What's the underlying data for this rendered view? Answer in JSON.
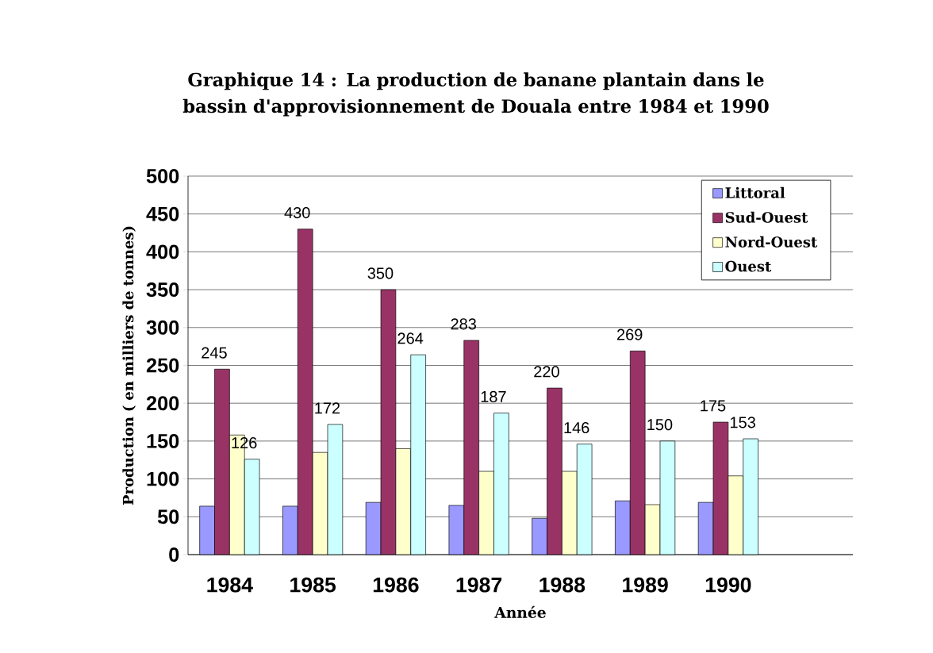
{
  "chart_data": {
    "type": "bar",
    "title": "Graphique 14 : La production de banane plantain  dans le  bassin d'approvisionnement de Douala entre 1984 et 1990",
    "xlabel": "Année",
    "ylabel": "Production ( en milliers de tonnes)",
    "categories": [
      "1984",
      "1985",
      "1986",
      "1987",
      "1988",
      "1989",
      "1990",
      null
    ],
    "ylim": [
      0,
      500
    ],
    "yticks": [
      0,
      50,
      100,
      150,
      200,
      250,
      300,
      350,
      400,
      450,
      500
    ],
    "grid": "y",
    "legend": "top right",
    "series": [
      {
        "name": "Littoral",
        "color": "#9999ff",
        "values": [
          64,
          64,
          69,
          65,
          48,
          71,
          69,
          null
        ]
      },
      {
        "name": "Sud-Ouest",
        "color": "#993366",
        "values": [
          245,
          430,
          350,
          283,
          220,
          269,
          175,
          null
        ],
        "value_labels": [
          "245",
          "430",
          "350",
          "283",
          "220",
          "269",
          "175",
          null
        ]
      },
      {
        "name": "Nord-Ouest",
        "color": "#ffffcc",
        "values": [
          158,
          135,
          140,
          110,
          110,
          66,
          104,
          null
        ]
      },
      {
        "name": "Ouest",
        "color": "#ccffff",
        "values": [
          126,
          172,
          264,
          187,
          146,
          150,
          153,
          null
        ],
        "value_labels": [
          "126",
          "172",
          "264",
          "187",
          "146",
          "150",
          "153",
          null
        ]
      }
    ]
  }
}
